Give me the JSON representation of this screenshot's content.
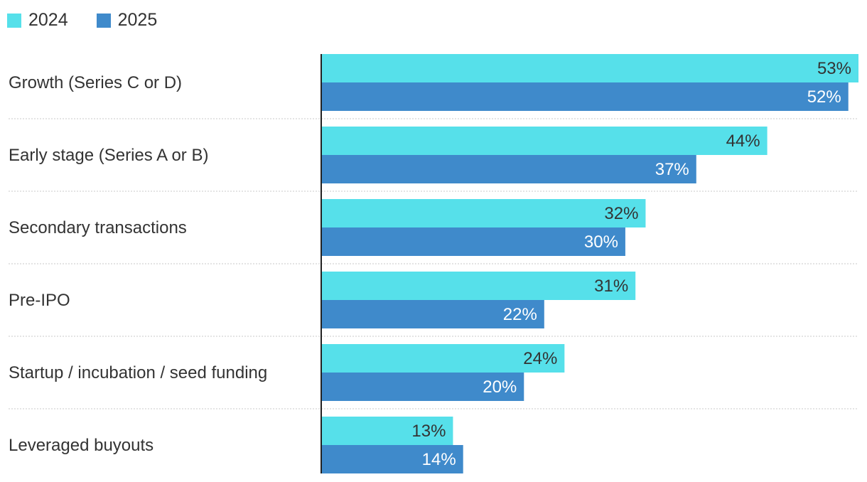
{
  "legend": [
    {
      "name": "2024",
      "color": "#56E0EA"
    },
    {
      "name": "2025",
      "color": "#3F8ACB"
    }
  ],
  "chart_data": {
    "type": "bar",
    "orientation": "horizontal",
    "categories": [
      "Growth (Series C or D)",
      "Early stage (Series A or B)",
      "Secondary transactions",
      "Pre-IPO",
      "Startup / incubation / seed funding",
      "Leveraged buyouts"
    ],
    "series": [
      {
        "name": "2024",
        "color": "#56E0EA",
        "values": [
          53,
          44,
          32,
          31,
          24,
          13
        ],
        "labels": [
          "53%",
          "44%",
          "32%",
          "31%",
          "24%",
          "13%"
        ]
      },
      {
        "name": "2025",
        "color": "#3F8ACB",
        "values": [
          52,
          37,
          30,
          22,
          20,
          14
        ],
        "labels": [
          "52%",
          "37%",
          "30%",
          "22%",
          "20%",
          "14%"
        ]
      }
    ],
    "title": "",
    "xlabel": "",
    "ylabel": "",
    "xlim": [
      0,
      53
    ],
    "grid": false,
    "legend_position": "top-left"
  }
}
